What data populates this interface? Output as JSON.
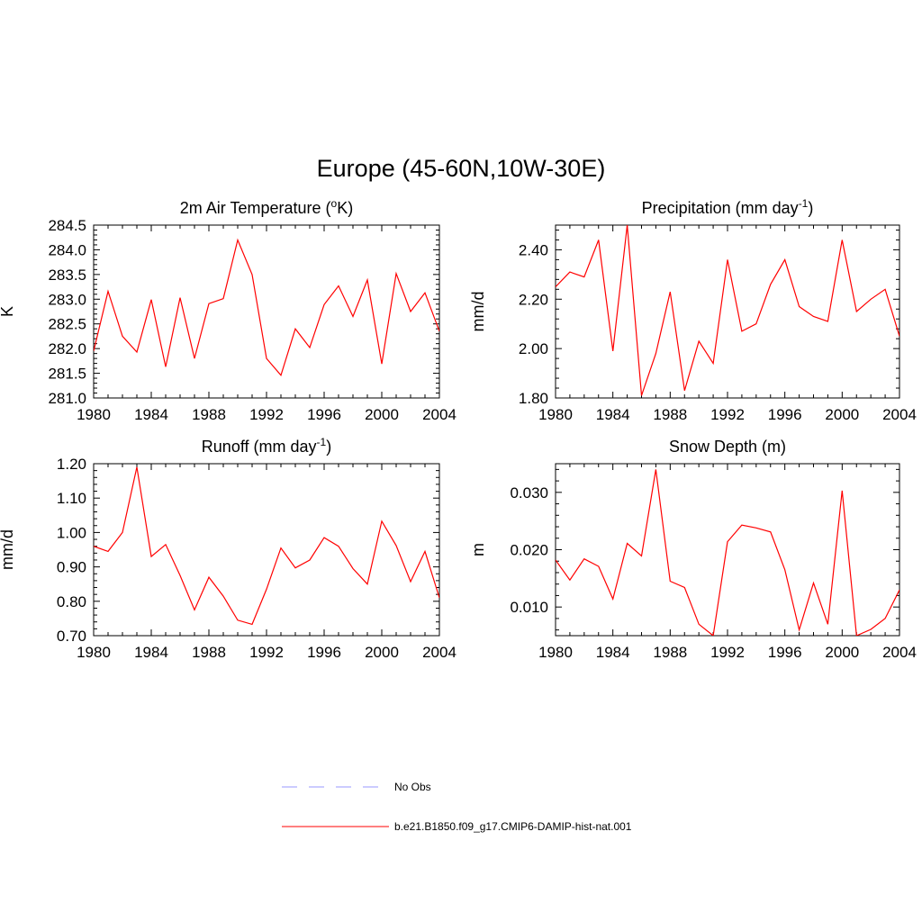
{
  "figure": {
    "title": "Europe (45-60N,10W-30E)"
  },
  "colors": {
    "series": "#ff0000",
    "no_obs": "#9999ff",
    "axis": "#000000"
  },
  "legend": {
    "placement": "bottom-center",
    "items": [
      {
        "label": "No Obs",
        "style": "dashed",
        "color": "#9999ff"
      },
      {
        "label": "b.e21.B1850.f09_g17.CMIP6-DAMIP-hist-nat.001",
        "style": "solid",
        "color": "#ff0000"
      }
    ]
  },
  "chart_data": [
    {
      "type": "line",
      "title": "2m Air Temperature (",
      "title_sup": "o",
      "title_after": "K)",
      "ylabel": "K",
      "xlabel": "",
      "xlim": [
        1980,
        2004
      ],
      "ylim": [
        281.0,
        284.5
      ],
      "xticks": [
        1980,
        1984,
        1988,
        1992,
        1996,
        2000,
        2004
      ],
      "yticks": [
        "281.0",
        "281.5",
        "282.0",
        "282.5",
        "283.0",
        "283.5",
        "284.0",
        "284.5"
      ],
      "ytick_values": [
        281.0,
        281.5,
        282.0,
        282.5,
        283.0,
        283.5,
        284.0,
        284.5
      ],
      "grid": false,
      "series": [
        {
          "name": "b.e21.B1850.f09_g17.CMIP6-DAMIP-hist-nat.001",
          "x": [
            1980,
            1981,
            1982,
            1983,
            1984,
            1985,
            1986,
            1987,
            1988,
            1989,
            1990,
            1991,
            1992,
            1993,
            1994,
            1995,
            1996,
            1997,
            1998,
            1999,
            2000,
            2001,
            2002,
            2003,
            2004
          ],
          "y": [
            281.95,
            283.16,
            282.25,
            281.93,
            282.99,
            281.63,
            283.03,
            281.8,
            282.91,
            283.01,
            284.2,
            283.5,
            281.8,
            281.46,
            282.4,
            282.02,
            282.89,
            283.27,
            282.65,
            283.39,
            281.69,
            283.52,
            282.75,
            283.13,
            282.35
          ]
        }
      ]
    },
    {
      "type": "line",
      "title": "Precipitation (mm day",
      "title_sup": "-1",
      "title_after": ")",
      "ylabel": "mm/d",
      "xlabel": "",
      "xlim": [
        1980,
        2004
      ],
      "ylim": [
        1.8,
        2.5
      ],
      "xticks": [
        1980,
        1984,
        1988,
        1992,
        1996,
        2000,
        2004
      ],
      "yticks": [
        "1.80",
        "2.00",
        "2.20",
        "2.40"
      ],
      "ytick_values": [
        1.8,
        2.0,
        2.2,
        2.4
      ],
      "grid": false,
      "series": [
        {
          "name": "b.e21.B1850.f09_g17.CMIP6-DAMIP-hist-nat.001",
          "x": [
            1980,
            1981,
            1982,
            1983,
            1984,
            1985,
            1986,
            1987,
            1988,
            1989,
            1990,
            1991,
            1992,
            1993,
            1994,
            1995,
            1996,
            1997,
            1998,
            1999,
            2000,
            2001,
            2002,
            2003,
            2004
          ],
          "y": [
            2.25,
            2.31,
            2.29,
            2.44,
            1.99,
            2.5,
            1.81,
            1.98,
            2.23,
            1.83,
            2.03,
            1.94,
            2.36,
            2.07,
            2.1,
            2.26,
            2.36,
            2.17,
            2.13,
            2.11,
            2.44,
            2.15,
            2.2,
            2.24,
            2.05
          ]
        }
      ]
    },
    {
      "type": "line",
      "title": "Runoff (mm day",
      "title_sup": "-1",
      "title_after": ")",
      "ylabel": "mm/d",
      "xlabel": "",
      "xlim": [
        1980,
        2004
      ],
      "ylim": [
        0.7,
        1.2
      ],
      "xticks": [
        1980,
        1984,
        1988,
        1992,
        1996,
        2000,
        2004
      ],
      "yticks": [
        "0.70",
        "0.80",
        "0.90",
        "1.00",
        "1.10",
        "1.20"
      ],
      "ytick_values": [
        0.7,
        0.8,
        0.9,
        1.0,
        1.1,
        1.2
      ],
      "grid": false,
      "series": [
        {
          "name": "b.e21.B1850.f09_g17.CMIP6-DAMIP-hist-nat.001",
          "x": [
            1980,
            1981,
            1982,
            1983,
            1984,
            1985,
            1986,
            1987,
            1988,
            1989,
            1990,
            1991,
            1992,
            1993,
            1994,
            1995,
            1996,
            1997,
            1998,
            1999,
            2000,
            2001,
            2002,
            2003,
            2004
          ],
          "y": [
            0.96,
            0.945,
            1.0,
            1.19,
            0.93,
            0.965,
            0.875,
            0.775,
            0.87,
            0.815,
            0.745,
            0.733,
            0.835,
            0.955,
            0.897,
            0.92,
            0.985,
            0.96,
            0.895,
            0.85,
            1.033,
            0.962,
            0.857,
            0.945,
            0.81
          ]
        }
      ]
    },
    {
      "type": "line",
      "title": "Snow Depth (m)",
      "title_sup": "",
      "title_after": "",
      "ylabel": "m",
      "xlabel": "",
      "xlim": [
        1980,
        2004
      ],
      "ylim": [
        0.005,
        0.035
      ],
      "xticks": [
        1980,
        1984,
        1988,
        1992,
        1996,
        2000,
        2004
      ],
      "yticks": [
        "0.010",
        "0.020",
        "0.030"
      ],
      "ytick_values": [
        0.01,
        0.02,
        0.03
      ],
      "grid": false,
      "series": [
        {
          "name": "b.e21.B1850.f09_g17.CMIP6-DAMIP-hist-nat.001",
          "x": [
            1980,
            1981,
            1982,
            1983,
            1984,
            1985,
            1986,
            1987,
            1988,
            1989,
            1990,
            1991,
            1992,
            1993,
            1994,
            1995,
            1996,
            1997,
            1998,
            1999,
            2000,
            2001,
            2002,
            2003,
            2004
          ],
          "y": [
            0.0182,
            0.0147,
            0.0184,
            0.0171,
            0.0114,
            0.0211,
            0.0189,
            0.034,
            0.0145,
            0.0134,
            0.007,
            0.005,
            0.0214,
            0.0243,
            0.0238,
            0.0231,
            0.0165,
            0.006,
            0.0142,
            0.007,
            0.0303,
            0.005,
            0.0061,
            0.008,
            0.013
          ]
        }
      ]
    }
  ]
}
